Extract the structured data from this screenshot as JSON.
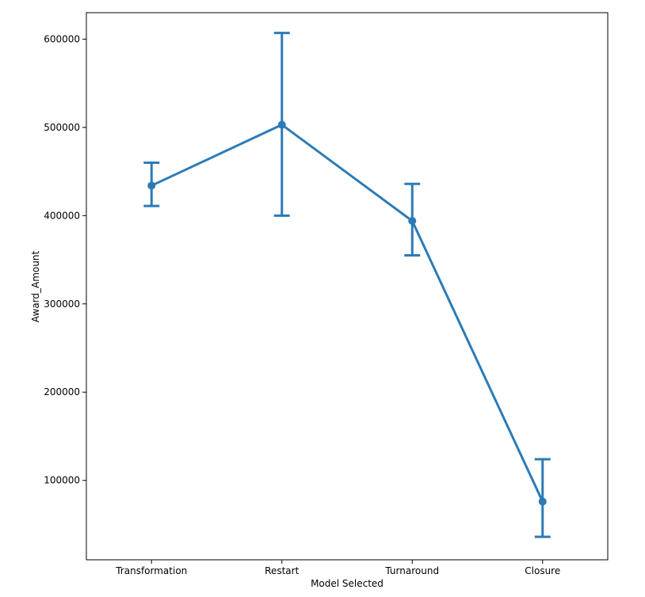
{
  "chart_data": {
    "type": "line",
    "title": "",
    "xlabel": "Model Selected",
    "ylabel": "Award_Amount",
    "categories": [
      "Transformation",
      "Restart",
      "Turnaround",
      "Closure"
    ],
    "values": [
      434000,
      503000,
      394000,
      76000
    ],
    "error_low": [
      411000,
      400000,
      355000,
      36000
    ],
    "error_high": [
      460000,
      607000,
      436000,
      124000
    ],
    "yticks": [
      100000,
      200000,
      300000,
      400000,
      500000,
      600000
    ],
    "ytick_labels": [
      "100000",
      "200000",
      "300000",
      "400000",
      "500000",
      "600000"
    ],
    "ylim": [
      10000,
      630000
    ],
    "grid": false,
    "series_color": "#2c7bb6",
    "marker": "circle"
  }
}
